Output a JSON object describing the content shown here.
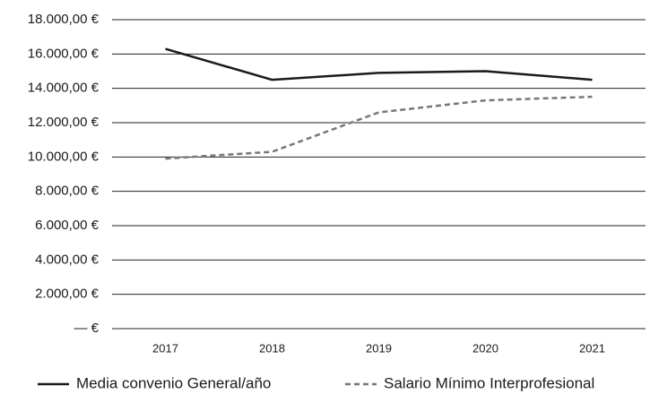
{
  "chart_data": {
    "type": "line",
    "categories": [
      "2017",
      "2018",
      "2019",
      "2020",
      "2021"
    ],
    "series": [
      {
        "name": "Media convenio General/año",
        "color": "#1a1a1a",
        "dash": "solid",
        "values": [
          16300,
          14500,
          14900,
          15000,
          14500
        ]
      },
      {
        "name": "Salario Mínimo Interprofesional",
        "color": "#777777",
        "dash": "dashed",
        "values": [
          9908,
          10303,
          12600,
          13300,
          13510
        ]
      }
    ],
    "ylim": [
      0,
      18000
    ],
    "yticks": [
      {
        "value": 0,
        "label": "— €"
      },
      {
        "value": 2000,
        "label": "2.000,00 €"
      },
      {
        "value": 4000,
        "label": "4.000,00 €"
      },
      {
        "value": 6000,
        "label": "6.000,00 €"
      },
      {
        "value": 8000,
        "label": "8.000,00 €"
      },
      {
        "value": 10000,
        "label": "10.000,00 €"
      },
      {
        "value": 12000,
        "label": "12.000,00 €"
      },
      {
        "value": 14000,
        "label": "14.000,00 €"
      },
      {
        "value": 16000,
        "label": "16.000,00 €"
      },
      {
        "value": 18000,
        "label": "18.000,00 €"
      }
    ],
    "grid": true,
    "legend": "bottom"
  }
}
